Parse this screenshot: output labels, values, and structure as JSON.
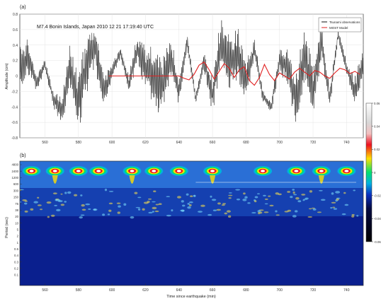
{
  "panel_a_label": "(a)",
  "panel_b_label": "(b)",
  "chart_data": [
    {
      "type": "line",
      "title": "M7.4 Bonin Islands, Japan 2010 12 21 17:19:40 UTC",
      "ylabel": "Amplitude (cm)",
      "xlim": [
        545,
        750
      ],
      "ylim": [
        -0.8,
        0.8
      ],
      "x_ticks": [
        560,
        580,
        600,
        620,
        640,
        660,
        680,
        700,
        720,
        740
      ],
      "y_ticks": [
        -0.8,
        -0.6,
        -0.4,
        -0.2,
        0,
        0.2,
        0.4,
        0.6,
        0.8
      ],
      "y_tick_labels": [
        "-0.8",
        "-0.6",
        "-0.4",
        "-0.2",
        "0",
        "0.2",
        "0.4",
        "0.6",
        "0.8"
      ],
      "legend_position": "top-right",
      "series": [
        {
          "name": "Tsunami observations",
          "color": "#111111",
          "values_description_free": true,
          "x": [
            545,
            550,
            555,
            560,
            565,
            570,
            575,
            580,
            585,
            590,
            595,
            600,
            605,
            610,
            615,
            620,
            625,
            630,
            635,
            640,
            645,
            650,
            655,
            660,
            665,
            670,
            675,
            680,
            685,
            690,
            695,
            700,
            705,
            710,
            715,
            720,
            725,
            730,
            735,
            740,
            745,
            750
          ],
          "y": [
            0.05,
            0.25,
            -0.1,
            0.15,
            -0.3,
            -0.45,
            0.1,
            -0.35,
            0.2,
            0.35,
            -0.2,
            0.05,
            0.3,
            -0.1,
            0.35,
            0.1,
            0.0,
            -0.15,
            0.25,
            -0.2,
            0.45,
            -0.3,
            0.2,
            -0.25,
            0.4,
            0.15,
            0.3,
            -0.1,
            0.35,
            -0.25,
            -0.4,
            0.2,
            0.1,
            -0.3,
            0.25,
            -0.2,
            0.45,
            -0.3,
            0.55,
            0.1,
            -0.2,
            0.15
          ]
        },
        {
          "name": "MOST Model",
          "color": "#e02020",
          "x": [
            598,
            605,
            610,
            615,
            620,
            625,
            630,
            635,
            640,
            643,
            646,
            649,
            652,
            655,
            658,
            661,
            664,
            667,
            670,
            673,
            676,
            679,
            682,
            685,
            688,
            691,
            694,
            697,
            700,
            703,
            706,
            709,
            712,
            715,
            718,
            721,
            724,
            727,
            730,
            733,
            736,
            739,
            742,
            745,
            748
          ],
          "y": [
            0,
            0,
            0,
            0,
            0,
            0,
            0,
            0,
            0,
            -0.03,
            -0.05,
            0.02,
            0.14,
            0.18,
            0.08,
            -0.04,
            0.06,
            0.16,
            0.1,
            -0.02,
            0.08,
            0.12,
            -0.06,
            -0.12,
            -0.02,
            0.15,
            0.02,
            -0.06,
            0.04,
            0.0,
            -0.04,
            0.05,
            0.1,
            0.05,
            0.0,
            0.07,
            0.05,
            0.0,
            -0.03,
            0.04,
            0.1,
            0.08,
            0.03,
            0.06,
            0.02
          ]
        }
      ]
    },
    {
      "type": "heatmap",
      "title": "",
      "xlabel": "Time since earthquake (min)",
      "ylabel": "Period (sec)",
      "xlim": [
        545,
        750
      ],
      "x_ticks": [
        560,
        580,
        600,
        620,
        640,
        660,
        680,
        700,
        720,
        740
      ],
      "y_tick_labels": [
        "4800",
        "2400",
        "1200",
        "600",
        "300",
        "150",
        "75",
        "38",
        "20",
        "10",
        "5",
        "2",
        "1",
        "0.5",
        "0.4",
        "0.3",
        "0.2",
        "0.1"
      ],
      "colorbar": {
        "min": -0.06,
        "max": 0.06,
        "ticks": [
          0.06,
          0.04,
          0.02,
          0,
          -0.02,
          -0.04,
          -0.06
        ],
        "tick_labels": [
          "0.06",
          "0.04",
          "0.02",
          "0",
          "-0.02",
          "-0.04",
          "-0.06"
        ]
      },
      "hot_spots_minutes": [
        552,
        566,
        580,
        592,
        612,
        625,
        640,
        660,
        690,
        710,
        725,
        740
      ]
    }
  ]
}
